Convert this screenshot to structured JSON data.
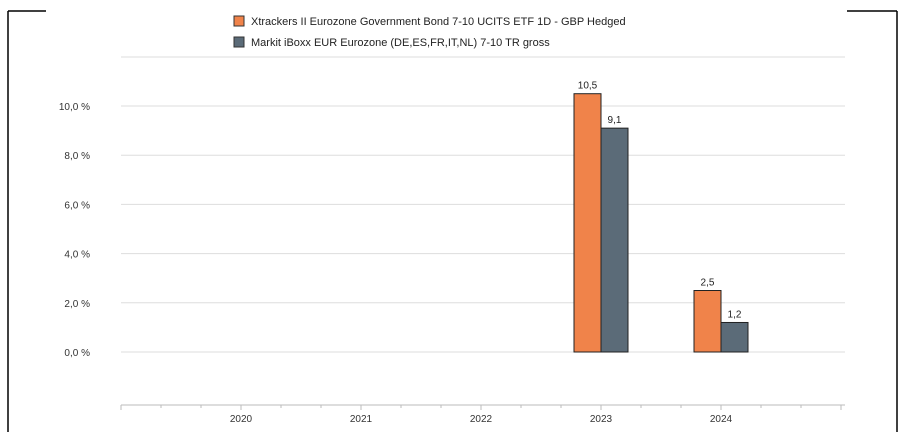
{
  "chart_data": {
    "type": "bar",
    "categories": [
      "2020",
      "2021",
      "2022",
      "2023",
      "2024"
    ],
    "series": [
      {
        "name": "Xtrackers II Eurozone Government Bond 7-10 UCITS ETF 1D - GBP Hedged",
        "values": [
          null,
          null,
          null,
          10.5,
          2.5
        ],
        "labels": [
          "",
          "",
          "",
          "10,5",
          "2,5"
        ],
        "color": "#f0834a"
      },
      {
        "name": "Markit iBoxx EUR Eurozone (DE,ES,FR,IT,NL) 7-10 TR gross",
        "values": [
          null,
          null,
          null,
          9.1,
          1.2
        ],
        "labels": [
          "",
          "",
          "",
          "9,1",
          "1,2"
        ],
        "color": "#5b6b78"
      }
    ],
    "yticks": [
      0,
      2,
      4,
      6,
      8,
      10
    ],
    "ytick_labels": [
      "0,0 %",
      "2,0 %",
      "4,0 %",
      "6,0 %",
      "8,0 %",
      "10,0 %"
    ],
    "ylim": [
      0,
      10.6
    ],
    "grid": true,
    "legend_position": "top"
  }
}
